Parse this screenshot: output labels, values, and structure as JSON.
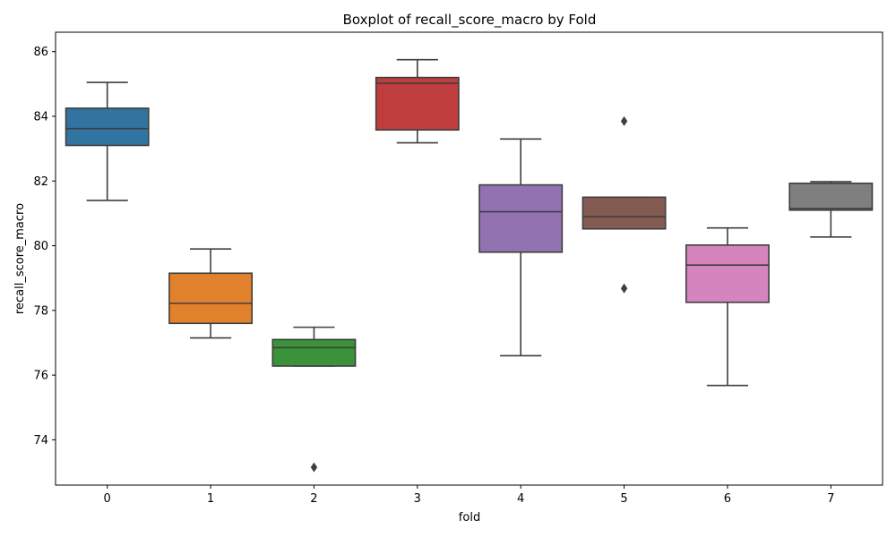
{
  "chart_data": {
    "type": "boxplot",
    "title": "Boxplot of recall_score_macro by Fold",
    "xlabel": "fold",
    "ylabel": "recall_score_macro",
    "ylim": [
      72.6,
      86.6
    ],
    "yticks": [
      74,
      76,
      78,
      80,
      82,
      84,
      86
    ],
    "grid": false,
    "categories": [
      "0",
      "1",
      "2",
      "3",
      "4",
      "5",
      "6",
      "7"
    ],
    "colors": [
      "#3274a1",
      "#e1812c",
      "#3a923a",
      "#c03d3e",
      "#9372b2",
      "#845b53",
      "#d684bd",
      "#7f7f7f"
    ],
    "line_color": "#3f3f3f",
    "boxes": [
      {
        "fold": "0",
        "whisker_low": 81.4,
        "q1": 83.1,
        "median": 83.62,
        "q3": 84.25,
        "whisker_high": 85.05,
        "outliers": []
      },
      {
        "fold": "1",
        "whisker_low": 77.15,
        "q1": 77.6,
        "median": 78.22,
        "q3": 79.15,
        "whisker_high": 79.9,
        "outliers": []
      },
      {
        "fold": "2",
        "whisker_low": 76.28,
        "q1": 76.28,
        "median": 76.85,
        "q3": 77.1,
        "whisker_high": 77.48,
        "outliers": [
          73.15
        ]
      },
      {
        "fold": "3",
        "whisker_low": 83.18,
        "q1": 83.58,
        "median": 85.02,
        "q3": 85.2,
        "whisker_high": 85.75,
        "outliers": []
      },
      {
        "fold": "4",
        "whisker_low": 76.6,
        "q1": 79.8,
        "median": 81.05,
        "q3": 81.88,
        "whisker_high": 83.3,
        "outliers": []
      },
      {
        "fold": "5",
        "whisker_low": 80.52,
        "q1": 80.52,
        "median": 80.9,
        "q3": 81.5,
        "whisker_high": 81.5,
        "outliers": [
          83.85,
          78.68
        ]
      },
      {
        "fold": "6",
        "whisker_low": 75.68,
        "q1": 78.25,
        "median": 79.4,
        "q3": 80.02,
        "whisker_high": 80.55,
        "outliers": []
      },
      {
        "fold": "7",
        "whisker_low": 80.27,
        "q1": 81.1,
        "median": 81.15,
        "q3": 81.93,
        "whisker_high": 81.98,
        "outliers": []
      }
    ]
  }
}
